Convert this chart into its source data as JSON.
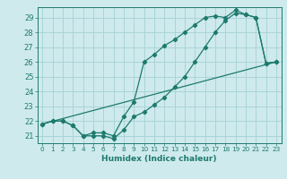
{
  "title": "",
  "xlabel": "Humidex (Indice chaleur)",
  "xlim": [
    -0.5,
    23.5
  ],
  "ylim": [
    20.5,
    29.7
  ],
  "xticks": [
    0,
    1,
    2,
    3,
    4,
    5,
    6,
    7,
    8,
    9,
    10,
    11,
    12,
    13,
    14,
    15,
    16,
    17,
    18,
    19,
    20,
    21,
    22,
    23
  ],
  "yticks": [
    21,
    22,
    23,
    24,
    25,
    26,
    27,
    28,
    29
  ],
  "bg_color": "#ceeaed",
  "line_color": "#1e7a6e",
  "grid_color": "#aad4d8",
  "line1_x": [
    0,
    1,
    2,
    3,
    4,
    5,
    6,
    7,
    8,
    9,
    10,
    11,
    12,
    13,
    14,
    15,
    16,
    17,
    18,
    19,
    20,
    21,
    22,
    23
  ],
  "line1_y": [
    21.8,
    22.0,
    22.0,
    21.7,
    21.0,
    21.0,
    21.0,
    20.8,
    21.4,
    22.3,
    22.6,
    23.1,
    23.6,
    24.3,
    25.0,
    26.0,
    27.0,
    28.0,
    28.8,
    29.3,
    29.2,
    29.0,
    25.9,
    26.0
  ],
  "line2_x": [
    0,
    1,
    2,
    3,
    4,
    5,
    6,
    7,
    8,
    9,
    10,
    11,
    12,
    13,
    14,
    15,
    16,
    17,
    18,
    19,
    20,
    21,
    22,
    23
  ],
  "line2_y": [
    21.8,
    22.0,
    22.0,
    21.7,
    21.0,
    21.2,
    21.2,
    21.0,
    22.3,
    23.3,
    26.0,
    26.5,
    27.1,
    27.5,
    28.0,
    28.5,
    29.0,
    29.1,
    29.0,
    29.5,
    29.2,
    29.0,
    25.9,
    26.0
  ],
  "line3_x": [
    0,
    23
  ],
  "line3_y": [
    21.8,
    26.0
  ]
}
